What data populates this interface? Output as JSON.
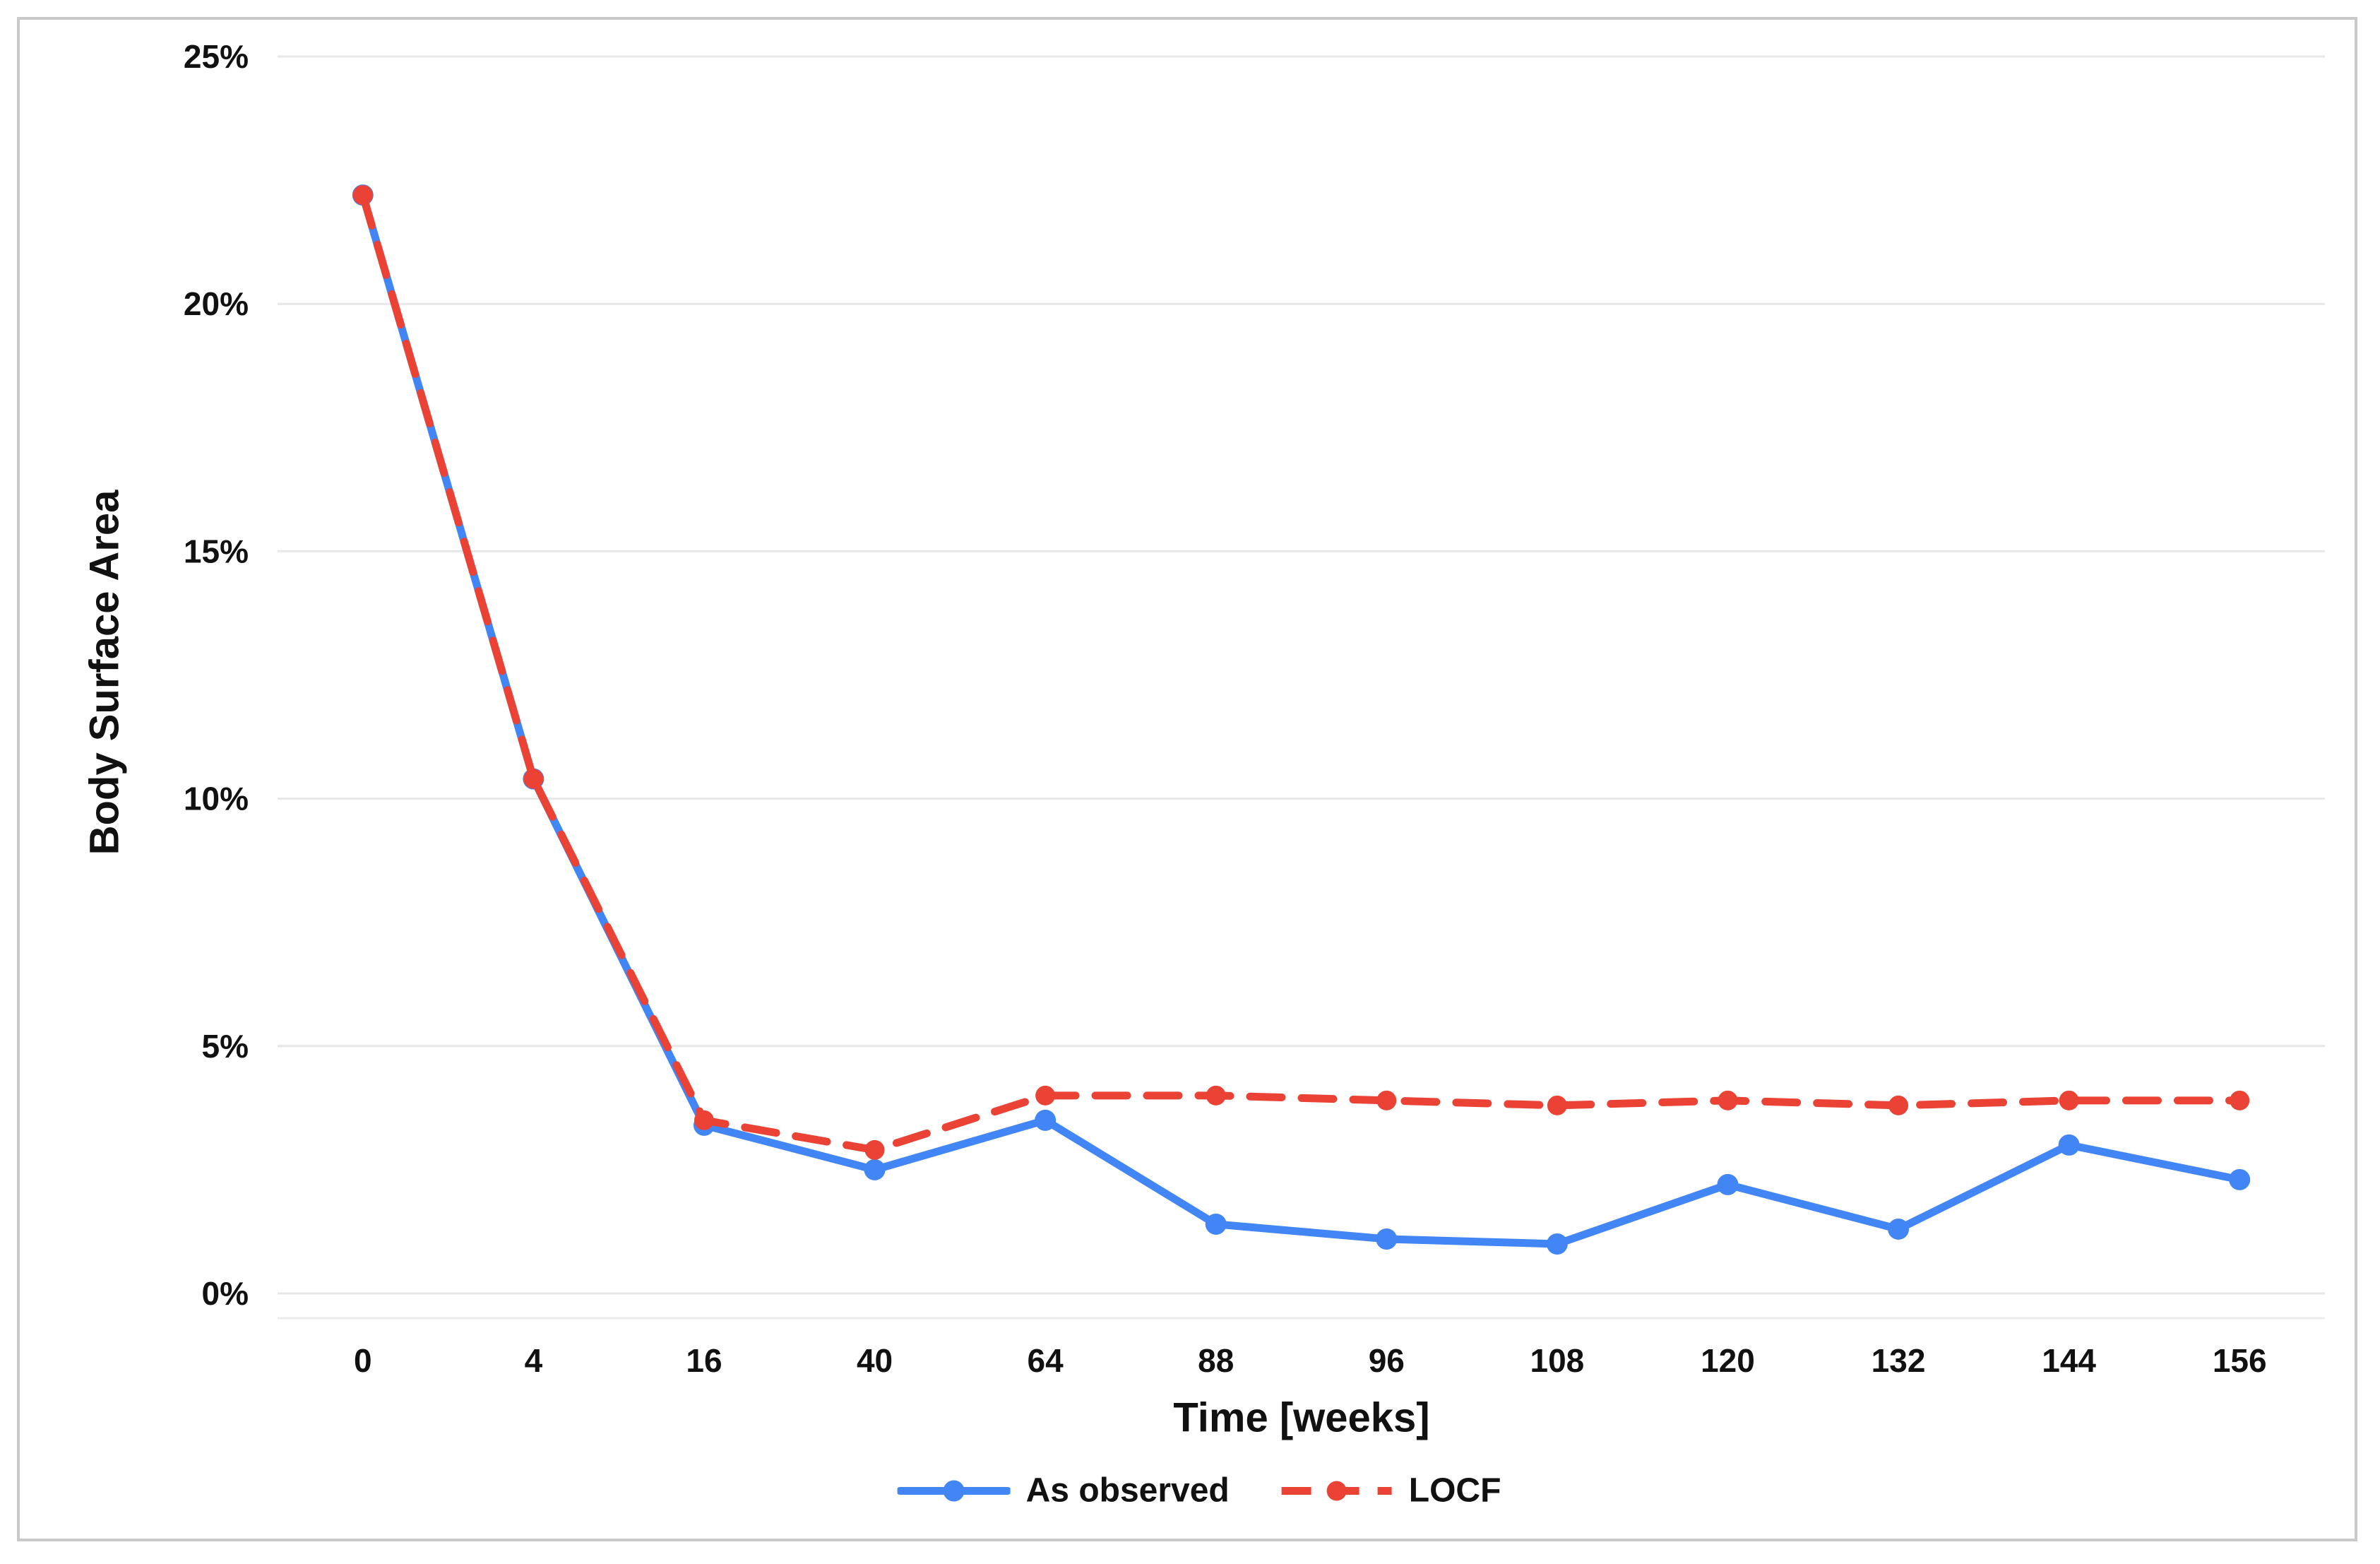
{
  "chart_data": {
    "type": "line",
    "title": "",
    "xlabel": "Time [weeks]",
    "ylabel": "Body Surface Area",
    "categories": [
      "0",
      "4",
      "16",
      "40",
      "64",
      "88",
      "96",
      "108",
      "120",
      "132",
      "144",
      "156"
    ],
    "y_ticks": [
      "0%",
      "5%",
      "10%",
      "15%",
      "20%",
      "25%"
    ],
    "ylim": [
      0,
      25
    ],
    "grid": "horizontal",
    "legend_position": "bottom-center",
    "series": [
      {
        "name": "As observed",
        "color": "#4285F4",
        "style": "solid",
        "marker": "circle",
        "values": [
          22.2,
          10.4,
          3.4,
          2.5,
          3.5,
          1.4,
          1.1,
          1.0,
          2.2,
          1.3,
          3.0,
          2.3
        ]
      },
      {
        "name": "LOCF",
        "color": "#EA4335",
        "style": "dashed",
        "marker": "circle",
        "values": [
          22.2,
          10.4,
          3.5,
          2.9,
          4.0,
          4.0,
          3.9,
          3.8,
          3.9,
          3.8,
          3.9,
          3.9
        ]
      }
    ]
  },
  "style": {
    "gridline_color": "#e7e7e7",
    "baseline_color": "#ececec",
    "frame_border_color": "#c9c9c9",
    "text_color": "#111111",
    "background": "#ffffff"
  }
}
